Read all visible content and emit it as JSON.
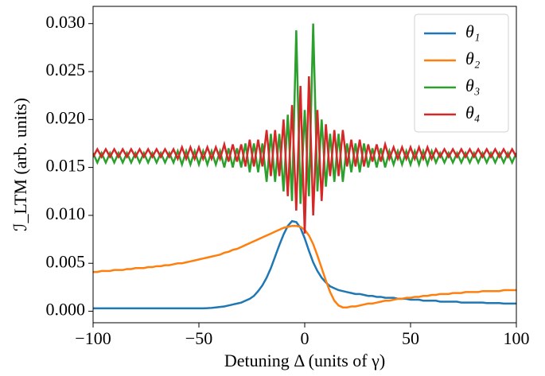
{
  "chart_data": {
    "type": "line",
    "xlabel": "Detuning Δ (units of γ)",
    "ylabel": "ℐ_LTM (arb. units)",
    "xlim": [
      -100,
      100
    ],
    "ylim": [
      -0.0012,
      0.0318
    ],
    "xticks": [
      {
        "value": -100,
        "label": "−100"
      },
      {
        "value": -50,
        "label": "−50"
      },
      0,
      50,
      100
    ],
    "yticks": [
      {
        "value": 0,
        "label": "0.000"
      },
      {
        "value": 0.005,
        "label": "0.005"
      },
      {
        "value": 0.01,
        "label": "0.010"
      },
      {
        "value": 0.015,
        "label": "0.015"
      },
      {
        "value": 0.02,
        "label": "0.020"
      },
      {
        "value": 0.025,
        "label": "0.025"
      },
      {
        "value": 0.03,
        "label": "0.030"
      }
    ],
    "legend": "upper right",
    "x": [
      -100,
      -98,
      -96,
      -94,
      -92,
      -90,
      -88,
      -86,
      -84,
      -82,
      -80,
      -78,
      -76,
      -74,
      -72,
      -70,
      -68,
      -66,
      -64,
      -62,
      -60,
      -58,
      -56,
      -54,
      -52,
      -50,
      -48,
      -46,
      -44,
      -42,
      -40,
      -38,
      -36,
      -34,
      -32,
      -30,
      -28,
      -26,
      -24,
      -22,
      -20,
      -18,
      -16,
      -14,
      -12,
      -10,
      -8,
      -6,
      -4,
      -2,
      0,
      2,
      4,
      6,
      8,
      10,
      12,
      14,
      16,
      18,
      20,
      22,
      24,
      26,
      28,
      30,
      32,
      34,
      36,
      38,
      40,
      42,
      44,
      46,
      48,
      50,
      52,
      54,
      56,
      58,
      60,
      62,
      64,
      66,
      68,
      70,
      72,
      74,
      76,
      78,
      80,
      82,
      84,
      86,
      88,
      90,
      92,
      94,
      96,
      98,
      100
    ],
    "series": [
      {
        "name": "θ₁",
        "color": "#1f77b4",
        "values": [
          0.0003,
          0.0003,
          0.0003,
          0.0003,
          0.0003,
          0.0003,
          0.0003,
          0.0003,
          0.0003,
          0.0003,
          0.0003,
          0.0003,
          0.0003,
          0.0003,
          0.0003,
          0.0003,
          0.0003,
          0.0003,
          0.0003,
          0.0003,
          0.0003,
          0.0003,
          0.0003,
          0.0003,
          0.0003,
          0.0003,
          0.0003,
          0.00032,
          0.00035,
          0.0004,
          0.00045,
          0.0005,
          0.0006,
          0.0007,
          0.0008,
          0.0009,
          0.0011,
          0.0013,
          0.0016,
          0.0021,
          0.0027,
          0.0035,
          0.0045,
          0.0057,
          0.0069,
          0.008,
          0.0089,
          0.0094,
          0.0093,
          0.0087,
          0.0076,
          0.0063,
          0.0051,
          0.0042,
          0.0035,
          0.003,
          0.0026,
          0.0024,
          0.0022,
          0.0021,
          0.002,
          0.0019,
          0.0018,
          0.0018,
          0.0017,
          0.0016,
          0.0016,
          0.0015,
          0.0015,
          0.0014,
          0.0014,
          0.0014,
          0.0013,
          0.0013,
          0.0013,
          0.0012,
          0.0012,
          0.0012,
          0.0011,
          0.0011,
          0.0011,
          0.0011,
          0.001,
          0.001,
          0.001,
          0.001,
          0.001,
          0.0009,
          0.0009,
          0.0009,
          0.0009,
          0.0009,
          0.0009,
          0.00085,
          0.00085,
          0.00085,
          0.00085,
          0.0008,
          0.0008,
          0.0008,
          0.0008
        ]
      },
      {
        "name": "θ₂",
        "color": "#ff7f0e",
        "values": [
          0.0041,
          0.0041,
          0.0042,
          0.0042,
          0.0042,
          0.0043,
          0.0043,
          0.0043,
          0.0044,
          0.0044,
          0.0045,
          0.0045,
          0.0045,
          0.0046,
          0.0046,
          0.0047,
          0.0047,
          0.0048,
          0.0048,
          0.0049,
          0.005,
          0.005,
          0.0051,
          0.0052,
          0.0053,
          0.0054,
          0.0055,
          0.0056,
          0.0057,
          0.0058,
          0.0059,
          0.0061,
          0.0062,
          0.0064,
          0.0065,
          0.0067,
          0.0069,
          0.0071,
          0.0073,
          0.0075,
          0.0077,
          0.0079,
          0.0081,
          0.0083,
          0.0085,
          0.0087,
          0.0088,
          0.0089,
          0.0089,
          0.0088,
          0.0085,
          0.0079,
          0.007,
          0.0058,
          0.0045,
          0.0032,
          0.002,
          0.0011,
          0.0006,
          0.0004,
          0.0004,
          0.0005,
          0.0005,
          0.0006,
          0.0007,
          0.0008,
          0.0008,
          0.0009,
          0.001,
          0.0011,
          0.0011,
          0.0012,
          0.0013,
          0.0013,
          0.0014,
          0.0014,
          0.0015,
          0.0015,
          0.0016,
          0.0016,
          0.0017,
          0.0017,
          0.0018,
          0.0018,
          0.0018,
          0.0019,
          0.0019,
          0.0019,
          0.002,
          0.002,
          0.002,
          0.002,
          0.0021,
          0.0021,
          0.0021,
          0.0021,
          0.0021,
          0.0022,
          0.0022,
          0.0022,
          0.0022
        ]
      },
      {
        "name": "θ₃",
        "color": "#2ca02c",
        "values": [
          0.0165,
          0.0155,
          0.0165,
          0.0155,
          0.0165,
          0.0155,
          0.0165,
          0.0155,
          0.0165,
          0.0155,
          0.0165,
          0.0155,
          0.0165,
          0.0155,
          0.0165,
          0.0155,
          0.0165,
          0.0155,
          0.0165,
          0.0155,
          0.0167,
          0.0153,
          0.0167,
          0.0153,
          0.0167,
          0.0153,
          0.0167,
          0.0153,
          0.0167,
          0.0153,
          0.0167,
          0.015,
          0.017,
          0.015,
          0.017,
          0.015,
          0.0175,
          0.0145,
          0.0175,
          0.0145,
          0.0175,
          0.0135,
          0.0185,
          0.0135,
          0.0185,
          0.0125,
          0.0205,
          0.0115,
          0.0293,
          0.0112,
          0.021,
          0.012,
          0.03,
          0.0125,
          0.02,
          0.013,
          0.0185,
          0.0135,
          0.0185,
          0.0135,
          0.0175,
          0.0145,
          0.0175,
          0.0145,
          0.0175,
          0.015,
          0.017,
          0.015,
          0.017,
          0.015,
          0.0167,
          0.0153,
          0.0167,
          0.0153,
          0.0167,
          0.0153,
          0.0167,
          0.0153,
          0.0167,
          0.0153,
          0.0167,
          0.0155,
          0.0165,
          0.0155,
          0.0165,
          0.0155,
          0.0165,
          0.0155,
          0.0165,
          0.0155,
          0.0165,
          0.0155,
          0.0165,
          0.0155,
          0.0165,
          0.0155,
          0.0165,
          0.0155,
          0.0165,
          0.0155,
          0.0165
        ]
      },
      {
        "name": "θ₄",
        "color": "#d62728",
        "values": [
          0.0161,
          0.0169,
          0.0161,
          0.0169,
          0.0161,
          0.0169,
          0.0161,
          0.0169,
          0.0161,
          0.0169,
          0.0161,
          0.0169,
          0.0161,
          0.0169,
          0.0161,
          0.0169,
          0.0161,
          0.0169,
          0.0161,
          0.0169,
          0.0159,
          0.0171,
          0.0159,
          0.0171,
          0.0159,
          0.0171,
          0.0159,
          0.0171,
          0.0159,
          0.0171,
          0.0159,
          0.0174,
          0.0156,
          0.0174,
          0.0156,
          0.0174,
          0.0151,
          0.0179,
          0.0151,
          0.0179,
          0.0151,
          0.0189,
          0.0141,
          0.0189,
          0.0141,
          0.02,
          0.012,
          0.0215,
          0.0105,
          0.0235,
          0.0081,
          0.0245,
          0.01,
          0.021,
          0.0115,
          0.0195,
          0.0141,
          0.0189,
          0.0141,
          0.0189,
          0.0151,
          0.0179,
          0.0151,
          0.0179,
          0.0151,
          0.0174,
          0.0156,
          0.0174,
          0.0156,
          0.0174,
          0.0159,
          0.0171,
          0.0159,
          0.0171,
          0.0159,
          0.0171,
          0.0159,
          0.0171,
          0.0159,
          0.0171,
          0.0159,
          0.0169,
          0.0161,
          0.0169,
          0.0161,
          0.0169,
          0.0161,
          0.0169,
          0.0161,
          0.0169,
          0.0161,
          0.0169,
          0.0161,
          0.0169,
          0.0161,
          0.0169,
          0.0161,
          0.0169,
          0.0161,
          0.0169,
          0.0161
        ]
      }
    ]
  }
}
